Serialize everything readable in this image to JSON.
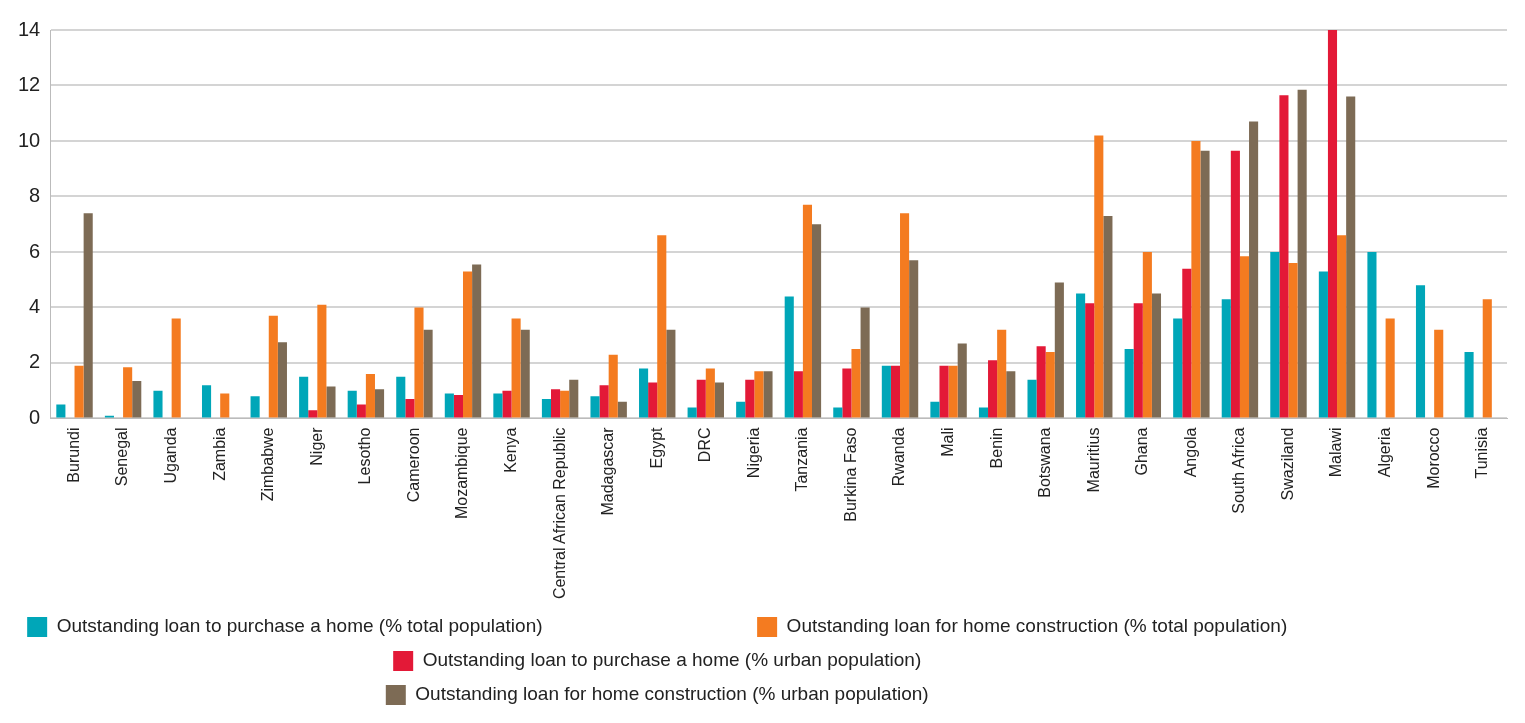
{
  "chart_data": {
    "type": "bar",
    "categories": [
      "Burundi",
      "Senegal",
      "Uganda",
      "Zambia",
      "Zimbabwe",
      "Niger",
      "Lesotho",
      "Cameroon",
      "Mozambique",
      "Kenya",
      "Central African Republic",
      "Madagascar",
      "Egypt",
      "DRC",
      "Nigeria",
      "Tanzania",
      "Burkina Faso",
      "Rwanda",
      "Mali",
      "Benin",
      "Botswana",
      "Mauritius",
      "Ghana",
      "Angola",
      "South Africa",
      "Swaziland",
      "Malawi",
      "Algeria",
      "Morocco",
      "Tunisia"
    ],
    "series": [
      {
        "name": "Outstanding loan to purchase a home (% total population)",
        "color": "#00a6b8",
        "values": [
          0.5,
          0.1,
          1.0,
          1.2,
          0.8,
          1.5,
          1.0,
          1.5,
          0.9,
          0.9,
          0.7,
          0.8,
          1.8,
          0.4,
          0.6,
          4.4,
          0.4,
          1.9,
          0.6,
          0.4,
          1.4,
          4.5,
          2.5,
          3.6,
          4.3,
          6.0,
          5.3,
          6.0,
          4.8,
          2.4
        ]
      },
      {
        "name": "Outstanding loan to purchase a home (% urban population)",
        "color": "#e31937",
        "values": [
          null,
          null,
          null,
          null,
          null,
          0.3,
          0.5,
          0.7,
          0.85,
          1.0,
          1.05,
          1.2,
          1.3,
          1.4,
          1.4,
          1.7,
          1.8,
          1.9,
          1.9,
          2.1,
          2.6,
          4.15,
          4.15,
          5.4,
          9.65,
          11.65,
          14,
          null,
          null,
          null
        ]
      },
      {
        "name": "Outstanding loan for home construction (% total population)",
        "color": "#f47b20",
        "values": [
          1.9,
          1.85,
          3.6,
          0.9,
          3.7,
          4.1,
          1.6,
          4.0,
          5.3,
          3.6,
          1.0,
          2.3,
          6.6,
          1.8,
          1.7,
          7.7,
          2.5,
          7.4,
          1.9,
          3.2,
          2.4,
          10.2,
          6.0,
          10.0,
          5.85,
          5.6,
          6.6,
          3.6,
          3.2,
          4.3
        ]
      },
      {
        "name": "Outstanding loan for home construction (% urban population)",
        "color": "#7d6b55",
        "values": [
          7.4,
          1.35,
          null,
          null,
          2.75,
          1.15,
          1.05,
          3.2,
          5.55,
          3.2,
          1.4,
          0.6,
          3.2,
          1.3,
          1.7,
          7.0,
          4.0,
          5.7,
          2.7,
          1.7,
          4.9,
          7.3,
          4.5,
          9.65,
          10.7,
          11.85,
          11.6,
          null,
          null,
          null
        ]
      }
    ],
    "ylim": [
      0,
      14
    ],
    "yticks": [
      0,
      2,
      4,
      6,
      8,
      10,
      12,
      14
    ],
    "grid": "y",
    "legend": "bottom"
  }
}
